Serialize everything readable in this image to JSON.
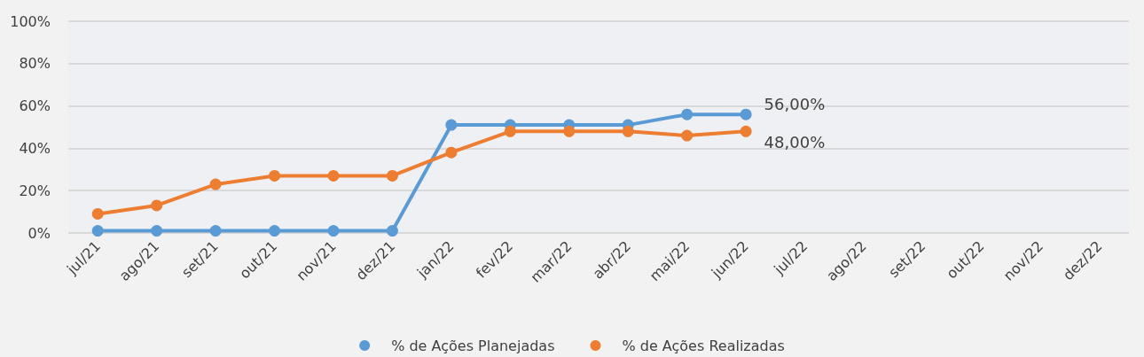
{
  "chart_data": {
    "type": "line",
    "categories": [
      "jul/21",
      "ago/21",
      "set/21",
      "out/21",
      "nov/21",
      "dez/21",
      "jan/22",
      "fev/22",
      "mar/22",
      "abr/22",
      "mai/22",
      "jun/22",
      "jul/22",
      "ago/22",
      "set/22",
      "out/22",
      "nov/22",
      "dez/22"
    ],
    "series": [
      {
        "name": "% de Ações Planejadas",
        "color": "#5b9bd5",
        "values": [
          1,
          1,
          1,
          1,
          1,
          1,
          51,
          51,
          51,
          51,
          56,
          56,
          null,
          null,
          null,
          null,
          null,
          null
        ],
        "value_labels": [
          null,
          null,
          null,
          null,
          null,
          null,
          null,
          null,
          null,
          null,
          null,
          "56,00%",
          null,
          null,
          null,
          null,
          null,
          null
        ]
      },
      {
        "name": "% de Ações Realizadas",
        "color": "#ed7d31",
        "values": [
          9,
          13,
          23,
          27,
          27,
          27,
          38,
          48,
          48,
          48,
          46,
          48,
          null,
          null,
          null,
          null,
          null,
          null
        ],
        "value_labels": [
          null,
          null,
          null,
          null,
          null,
          null,
          null,
          null,
          null,
          null,
          null,
          "48,00%",
          null,
          null,
          null,
          null,
          null,
          null
        ]
      }
    ],
    "ylim": [
      0,
      100
    ],
    "yticks": [
      {
        "value": 0,
        "label": "0%"
      },
      {
        "value": 20,
        "label": "20%"
      },
      {
        "value": 40,
        "label": "40%"
      },
      {
        "value": 60,
        "label": "60%"
      },
      {
        "value": 80,
        "label": "80%"
      },
      {
        "value": 100,
        "label": "100%"
      }
    ],
    "grid": "y",
    "legend": "bottom",
    "marker": "circle",
    "line_style": "solid"
  }
}
